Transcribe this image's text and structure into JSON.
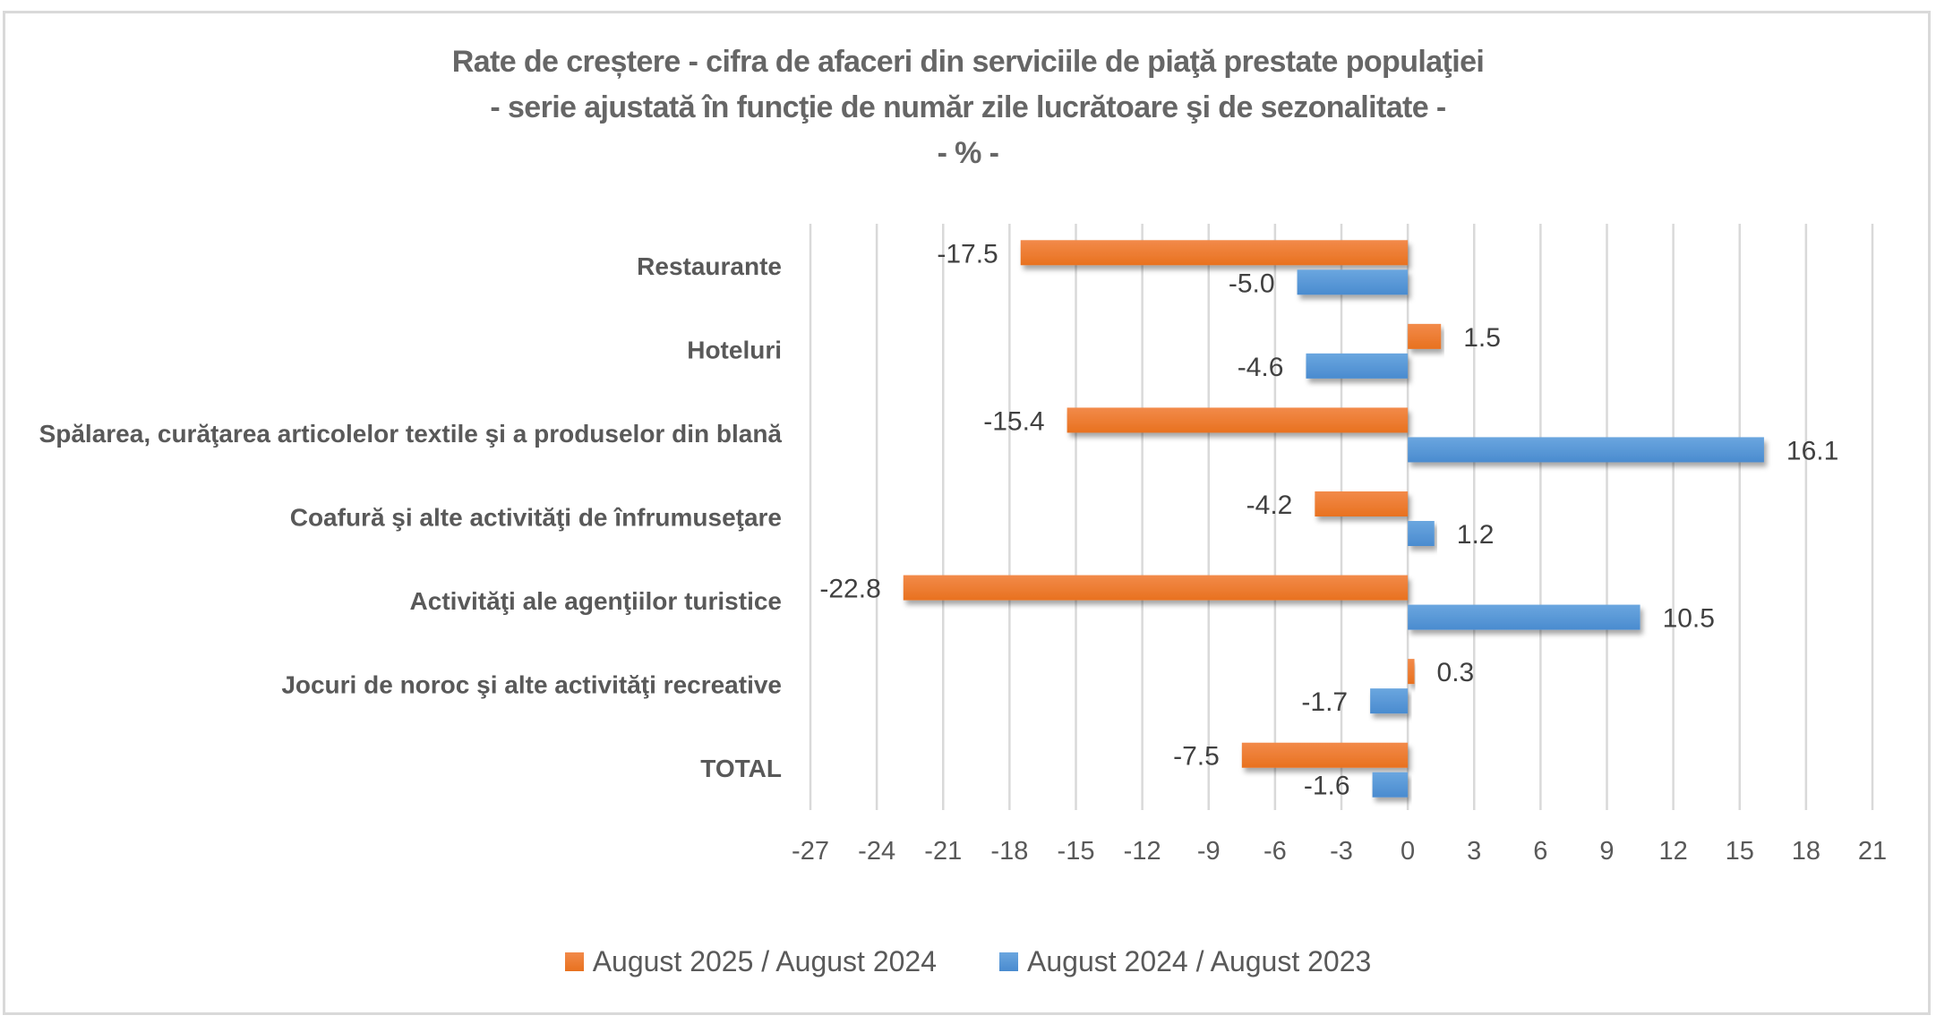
{
  "chart_data": {
    "type": "bar",
    "orientation": "horizontal",
    "title": [
      "Rate de creștere - cifra de afaceri din serviciile de piaţă prestate populaţiei",
      "- serie ajustată în funcţie de număr zile lucrătoare şi de sezonalitate -",
      "- % -"
    ],
    "xlabel": "",
    "ylabel": "",
    "categories": [
      "Restaurante",
      "Hoteluri",
      "Spălarea, curăţarea articolelor textile şi a produselor din blană",
      "Coafură şi alte activităţi de înfrumuseţare",
      "Activităţi ale agenţiilor turistice",
      "Jocuri de noroc şi alte activităţi recreative",
      "TOTAL"
    ],
    "series": [
      {
        "name": "August 2025 / August 2024",
        "color": "#ED7D31",
        "values": [
          -17.5,
          1.5,
          -15.4,
          -4.2,
          -22.8,
          0.3,
          -7.5
        ],
        "labels": [
          "-17.5",
          "1.5",
          "-15.4",
          "-4.2",
          "-22.8",
          "0.3",
          "-7.5"
        ]
      },
      {
        "name": "August 2024 / August 2023",
        "color": "#5B9BD5",
        "values": [
          -5.0,
          -4.6,
          16.1,
          1.2,
          10.5,
          -1.7,
          -1.6
        ],
        "labels": [
          "-5.0",
          "-4.6",
          "16.1",
          "1.2",
          "10.5",
          "-1.7",
          "-1.6"
        ]
      }
    ],
    "xlim": [
      -27,
      21
    ],
    "xticks": [
      -27,
      -24,
      -21,
      -18,
      -15,
      -12,
      -9,
      -6,
      -3,
      0,
      3,
      6,
      9,
      12,
      15,
      18,
      21
    ],
    "xtick_labels": [
      "-27",
      "-24",
      "-21",
      "-18",
      "-15",
      "-12",
      "-9",
      "-6",
      "-3",
      "0",
      "3",
      "6",
      "9",
      "12",
      "15",
      "18",
      "21"
    ],
    "grid": "vertical",
    "legend_position": "bottom"
  }
}
